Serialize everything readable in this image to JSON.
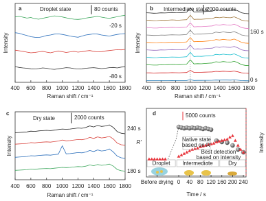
{
  "chart_data": [
    {
      "type": "line",
      "panel_label": "a",
      "title": "Droplet state",
      "xlabel": "Raman shift / cm⁻¹",
      "ylabel": "Intensity",
      "x": [
        400,
        450,
        500,
        550,
        600,
        650,
        700,
        750,
        800,
        850,
        900,
        950,
        1000,
        1050,
        1100,
        1150,
        1200,
        1250,
        1300,
        1350,
        1400,
        1450,
        1500,
        1550,
        1600,
        1650,
        1700,
        1750,
        1800
      ],
      "xlim": [
        400,
        1800
      ],
      "xticks": [
        400,
        600,
        800,
        1000,
        1200,
        1400,
        1600,
        1800
      ],
      "ylim": [
        0,
        700
      ],
      "scale_bar": {
        "value": 80,
        "label": "80 counts"
      },
      "top_label": "-20 s",
      "bottom_label": "-80 s",
      "series": [
        {
          "color": "#3aa65a",
          "values": [
            580,
            585,
            578,
            570,
            575,
            565,
            560,
            568,
            575,
            582,
            590,
            585,
            580,
            572,
            565,
            560,
            558,
            562,
            570,
            575,
            580,
            585,
            578,
            572,
            568,
            575,
            582,
            590,
            595
          ]
        },
        {
          "color": "#2a6ebb",
          "values": [
            440,
            435,
            425,
            415,
            405,
            400,
            398,
            405,
            415,
            420,
            428,
            430,
            425,
            418,
            410,
            405,
            400,
            410,
            420,
            425,
            430,
            428,
            420,
            415,
            410,
            418,
            425,
            430,
            432
          ]
        },
        {
          "color": "#d9413a",
          "values": [
            285,
            280,
            275,
            268,
            262,
            265,
            270,
            275,
            268,
            262,
            270,
            278,
            272,
            265,
            270,
            275,
            268,
            272,
            278,
            282,
            275,
            270,
            272,
            278,
            282,
            286,
            290,
            288,
            292
          ]
        },
        {
          "color": "#333333",
          "values": [
            140,
            132,
            128,
            125,
            120,
            118,
            122,
            128,
            125,
            118,
            115,
            120,
            125,
            130,
            128,
            122,
            118,
            120,
            125,
            128,
            130,
            126,
            122,
            125,
            130,
            132,
            128,
            135,
            138
          ]
        }
      ]
    },
    {
      "type": "line",
      "panel_label": "b",
      "title": "Intermediate state",
      "xlabel": "Raman shift / cm⁻¹",
      "ylabel": "Intensity",
      "x": [
        400,
        450,
        500,
        550,
        600,
        650,
        700,
        750,
        800,
        850,
        900,
        950,
        1000,
        1050,
        1100,
        1150,
        1200,
        1250,
        1300,
        1350,
        1400,
        1450,
        1500,
        1550,
        1600,
        1650,
        1700,
        1750,
        1800
      ],
      "xlim": [
        400,
        1800
      ],
      "xticks": [
        400,
        600,
        800,
        1000,
        1200,
        1400,
        1600,
        1800
      ],
      "ylim": [
        0,
        16500
      ],
      "vline": 1000,
      "scale_bar": {
        "value": 2000,
        "label": "2000 counts"
      },
      "top_label": "160 s",
      "bottom_label": "0 s",
      "series": [
        {
          "color": "#1f77b4",
          "values": [
            360,
            350,
            340,
            344,
            356,
            352,
            360,
            370,
            364,
            360,
            370,
            380,
            560,
            390,
            400,
            396,
            410,
            420,
            430,
            480,
            460,
            490,
            470,
            460,
            500,
            440,
            360,
            330,
            320
          ]
        },
        {
          "color": "#d62728",
          "values": [
            2000,
            1975,
            1950,
            1960,
            1990,
            1980,
            2000,
            2025,
            2010,
            2000,
            2025,
            2050,
            2500,
            2075,
            2100,
            2090,
            2125,
            2150,
            2175,
            2300,
            2250,
            2325,
            2275,
            2250,
            2350,
            2200,
            2000,
            1925,
            1900
          ]
        },
        {
          "color": "#2ca02c",
          "values": [
            3700,
            3650,
            3600,
            3620,
            3680,
            3660,
            3700,
            3750,
            3720,
            3700,
            3750,
            3800,
            4700,
            3850,
            3900,
            3880,
            3950,
            4000,
            4050,
            4300,
            4200,
            4350,
            4250,
            4200,
            4400,
            4100,
            3700,
            3550,
            3500
          ]
        },
        {
          "color": "#17becf",
          "values": [
            5250,
            5200,
            5150,
            5170,
            5230,
            5210,
            5250,
            5300,
            5270,
            5250,
            5300,
            5350,
            6250,
            5400,
            5450,
            5430,
            5500,
            5550,
            5600,
            5850,
            5750,
            5900,
            5800,
            5750,
            5950,
            5650,
            5250,
            5100,
            5050
          ]
        },
        {
          "color": "#9467bd",
          "values": [
            6800,
            6750,
            6700,
            6720,
            6780,
            6760,
            6800,
            6850,
            6820,
            6800,
            6850,
            6900,
            7800,
            6950,
            7000,
            6980,
            7050,
            7100,
            7150,
            7400,
            7300,
            7450,
            7350,
            7300,
            7500,
            7200,
            6800,
            6650,
            6600
          ]
        },
        {
          "color": "#ff7f0e",
          "values": [
            8350,
            8300,
            8250,
            8270,
            8330,
            8310,
            8350,
            8400,
            8370,
            8350,
            8400,
            8450,
            9350,
            8500,
            8550,
            8530,
            8600,
            8650,
            8700,
            8950,
            8850,
            9000,
            8900,
            8850,
            9050,
            8750,
            8350,
            8200,
            8150
          ]
        },
        {
          "color": "#7f7f7f",
          "values": [
            9900,
            9850,
            9800,
            9820,
            9880,
            9860,
            9900,
            9950,
            9920,
            9900,
            9950,
            10000,
            10900,
            10050,
            10100,
            10080,
            10150,
            10200,
            10250,
            10500,
            10400,
            10550,
            10450,
            10400,
            10600,
            10300,
            9900,
            9750,
            9700
          ]
        },
        {
          "color": "#e377c2",
          "values": [
            11450,
            11400,
            11350,
            11370,
            11430,
            11410,
            11450,
            11500,
            11470,
            11450,
            11500,
            11550,
            12450,
            11600,
            11650,
            11630,
            11700,
            11750,
            11800,
            12050,
            11950,
            12100,
            12000,
            11950,
            12150,
            11850,
            11450,
            11300,
            11250
          ]
        },
        {
          "color": "#a0763a",
          "values": [
            13000,
            12950,
            12900,
            12920,
            12980,
            12960,
            13000,
            13050,
            13020,
            13000,
            13050,
            13100,
            14000,
            13150,
            13200,
            13180,
            13250,
            13300,
            13350,
            13600,
            13500,
            13650,
            13550,
            13500,
            13700,
            13400,
            13000,
            12850,
            12800
          ]
        },
        {
          "color": "#222222",
          "values": [
            14550,
            14500,
            14450,
            14470,
            14530,
            14510,
            14550,
            14600,
            14570,
            14550,
            14600,
            14650,
            15550,
            14700,
            14750,
            14730,
            14800,
            14850,
            14900,
            15150,
            15050,
            15200,
            15100,
            15050,
            15250,
            14950,
            14550,
            14400,
            14350
          ]
        }
      ]
    },
    {
      "type": "line",
      "panel_label": "c",
      "title": "Dry state",
      "xlabel": "Raman shift / cm⁻¹",
      "ylabel": "Intensity",
      "x": [
        400,
        450,
        500,
        550,
        600,
        650,
        700,
        750,
        800,
        850,
        900,
        950,
        1000,
        1050,
        1100,
        1150,
        1200,
        1250,
        1300,
        1350,
        1400,
        1450,
        1500,
        1550,
        1600,
        1650,
        1700,
        1750,
        1800
      ],
      "xlim": [
        400,
        1800
      ],
      "xticks": [
        400,
        600,
        800,
        1000,
        1200,
        1400,
        1600,
        1800
      ],
      "ylim": [
        0,
        13000
      ],
      "scale_bar": {
        "value": 2000,
        "label": "2000 counts"
      },
      "top_label": "240 s",
      "bottom_label": "180 s",
      "series": [
        {
          "color": "#222222",
          "values": [
            9000,
            9050,
            9100,
            9150,
            9300,
            9250,
            9350,
            9400,
            9450,
            9400,
            9500,
            9600,
            9700,
            9650,
            9700,
            9800,
            9900,
            9850,
            10000,
            10300,
            10100,
            10400,
            10200,
            10300,
            10500,
            10000,
            9200,
            8900,
            8800
          ]
        },
        {
          "color": "#d9413a",
          "values": [
            6800,
            6850,
            6900,
            6950,
            7100,
            7050,
            7150,
            7200,
            7250,
            7200,
            7300,
            7400,
            7600,
            7450,
            7500,
            7600,
            7700,
            7650,
            7800,
            8100,
            7900,
            8200,
            8000,
            8100,
            8300,
            7800,
            7000,
            6700,
            6600
          ]
        },
        {
          "color": "#2a6ebb",
          "values": [
            4300,
            4350,
            4400,
            4450,
            4600,
            4550,
            4650,
            4700,
            4750,
            4700,
            4800,
            4900,
            6500,
            4950,
            5000,
            5100,
            5200,
            5150,
            5300,
            5600,
            5400,
            5700,
            5500,
            5600,
            5900,
            5300,
            4500,
            4200,
            4100
          ]
        },
        {
          "color": "#3aa65a",
          "values": [
            1800,
            1840,
            1880,
            1920,
            2040,
            2000,
            2080,
            2120,
            2160,
            2120,
            2200,
            2280,
            2360,
            2320,
            2360,
            2440,
            2520,
            2480,
            2600,
            2840,
            2680,
            2920,
            2760,
            2840,
            3000,
            2600,
            1960,
            1720,
            1640
          ]
        }
      ]
    },
    {
      "type": "scatter",
      "panel_label": "d",
      "xlabel": "Time / s",
      "ylabel": "R'",
      "y2label": "Intensity",
      "xlim": [
        -120,
        250
      ],
      "xticks": [
        {
          "value": -80,
          "label": "Before drying"
        },
        0,
        40,
        80,
        120,
        160,
        200,
        240
      ],
      "ylim": [
        0,
        1
      ],
      "y2lim": [
        0,
        40000
      ],
      "scale_bar": {
        "value": 5000,
        "label": "5000 counts"
      },
      "native_note": [
        "Native state",
        "based on R'"
      ],
      "best_note": [
        "Best detection",
        "based on intensity"
      ],
      "regions": [
        {
          "label": "Droplet",
          "range": [
            -120,
            -10
          ]
        },
        {
          "label": "Intermediate",
          "range": [
            -10,
            150
          ]
        },
        {
          "label": "Dry",
          "range": [
            150,
            250
          ]
        }
      ],
      "connector": {
        "x": [
          -40,
          -10,
          0
        ],
        "values": [
          0.26,
          0.55,
          0.73
        ]
      },
      "series": [
        {
          "color": "#555555",
          "x": [
            0,
            10,
            20,
            30,
            40,
            50,
            60,
            70,
            80,
            90,
            100,
            110,
            120,
            140,
            160,
            180,
            200,
            220,
            240
          ],
          "values": [
            0.73,
            0.72,
            0.71,
            0.72,
            0.71,
            0.72,
            0.71,
            0.72,
            0.71,
            0.7,
            0.71,
            0.7,
            0.69,
            0.53,
            0.51,
            0.5,
            0.46,
            0.4,
            0.36
          ]
        },
        {
          "color": "#e8363d",
          "axis": "y2",
          "x": [
            -110,
            -100,
            -90,
            -80,
            -70,
            -60,
            -50,
            0,
            10,
            20,
            30,
            40,
            50,
            60,
            70,
            80,
            90,
            100,
            110,
            120,
            130,
            140,
            150,
            160,
            170,
            180,
            190,
            200,
            210,
            220,
            230,
            240
          ],
          "values": [
            10400,
            10400,
            10400,
            10400,
            10400,
            10400,
            10400,
            12000,
            12800,
            13600,
            14400,
            15200,
            16000,
            16400,
            16800,
            17600,
            18000,
            18400,
            18800,
            19200,
            19600,
            20400,
            20800,
            21200,
            21600,
            22000,
            23200,
            24000,
            21200,
            18400,
            16000,
            14400
          ]
        }
      ]
    }
  ]
}
